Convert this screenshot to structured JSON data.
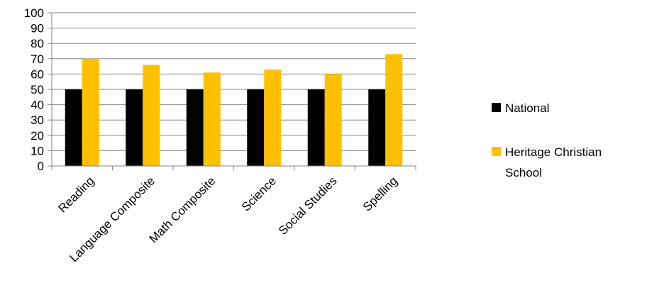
{
  "chart_data": {
    "type": "bar",
    "title": "",
    "xlabel": "",
    "ylabel": "",
    "ylim": [
      0,
      100
    ],
    "y_ticks": [
      "0",
      "10",
      "20",
      "30",
      "40",
      "50",
      "60",
      "70",
      "80",
      "90",
      "100"
    ],
    "grid": "horizontal",
    "legend_position": "right",
    "categories": [
      "Reading",
      "Language Composite",
      "Math Composite",
      "Science",
      "Social Studies",
      "Spelling"
    ],
    "series": [
      {
        "name": "National",
        "color": "#000000",
        "values": [
          50,
          50,
          50,
          50,
          50,
          50
        ]
      },
      {
        "name": "Heritage Christian School",
        "color": "#FFC000",
        "values": [
          70,
          66,
          61,
          63,
          60,
          73
        ]
      }
    ]
  },
  "legend": {
    "items": [
      {
        "line1": "National",
        "line2": ""
      },
      {
        "line1": "Heritage Christian",
        "line2": "School"
      }
    ]
  }
}
